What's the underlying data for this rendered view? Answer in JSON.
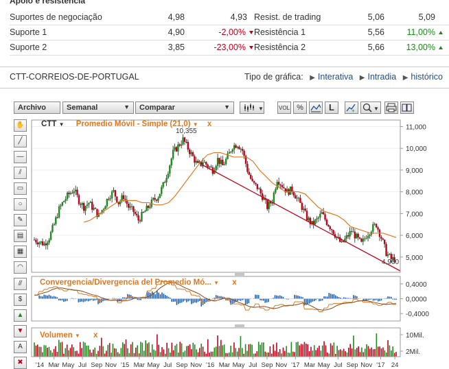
{
  "section_title": "Apoio e resistência",
  "sr_rows": [
    {
      "label": "Suportes de negociação",
      "v1": "4,98",
      "v2": "4,93",
      "rlabel": "Resist. de trading",
      "r1": "5,06",
      "r2": "5,09",
      "v2dir": "",
      "r2dir": ""
    },
    {
      "label": "Suporte 1",
      "v1": "4,90",
      "v2": "-2,00%",
      "rlabel": "Resistência 1",
      "r1": "5,56",
      "r2": "11,00%",
      "v2dir": "down",
      "r2dir": "up"
    },
    {
      "label": "Suporte 2",
      "v1": "3,85",
      "v2": "-23,00%",
      "rlabel": "Resistência 2",
      "r1": "5,66",
      "r2": "13,00%",
      "v2dir": "down",
      "r2dir": "up"
    }
  ],
  "company": "CTT-CORREIOS-DE-PORTUGAL",
  "chart_type_label": "Tipo de gráfica:",
  "chart_type_links": [
    "Interativa",
    "Intradia",
    "histórico"
  ],
  "toolbar": {
    "archive": "Archivo",
    "period": "Semanal",
    "compare": "Comparar",
    "icons": [
      "candles-icon",
      "volume-icon",
      "percent-icon",
      "compare-chart-icon",
      "line-chart-icon",
      "trend-icon",
      "zoom-icon",
      "print-icon",
      "book-icon"
    ],
    "vol_label": "VOL",
    "pct_label": "%",
    "l_label": "L"
  },
  "sidebar_icons": [
    "hand-tool-icon",
    "line-tool-icon",
    "horizontal-line-icon",
    "channel-tool-icon",
    "rectangle-tool-icon",
    "circle-tool-icon",
    "pencil-tool-icon",
    "fibonacci-tool-icon",
    "gann-tool-icon",
    "arc-tool-icon",
    "parallel-lines-icon",
    "dollar-tool-icon",
    "buy-arrow-icon",
    "sell-arrow-icon",
    "text-tool-icon",
    "delete-icon"
  ],
  "main_legend": {
    "symbol": "CTT",
    "indicator": "Promedio Móvil - Simple (21,0)",
    "close": "x"
  },
  "macd_legend": {
    "text": "Convergencia/Divergencia del Promedio Mó...",
    "close": "x"
  },
  "vol_legend": {
    "text": "Volumen",
    "close": "x"
  },
  "annotations": {
    "high": "10,355",
    "last": "4,900"
  },
  "chart_data": [
    {
      "type": "line",
      "title": "CTT",
      "series_name": "Promedio Móvil - Simple (21,0)",
      "y_ticks": [
        "11,000",
        "10,000",
        "9,000",
        "8,000",
        "7,000",
        "6,000",
        "5,000"
      ],
      "ylim": [
        4.3,
        11.3
      ],
      "x_ticks": [
        "'14",
        "Mar",
        "May",
        "Jul",
        "Sep",
        "Nov",
        "'15",
        "Mar",
        "May",
        "Jul",
        "Sep",
        "Nov",
        "'16",
        "Mar",
        "May",
        "Jul",
        "Sep",
        "Nov",
        "'17",
        "Mar",
        "May",
        "Jul",
        "Sep",
        "Nov",
        "'17",
        "24"
      ],
      "close": [
        5.8,
        5.7,
        5.6,
        5.9,
        6.5,
        7.2,
        7.6,
        7.9,
        8.1,
        7.6,
        7.3,
        7.5,
        7.2,
        6.9,
        7.3,
        7.8,
        8.0,
        7.5,
        7.8,
        7.3,
        7.1,
        6.7,
        7.0,
        7.3,
        7.6,
        7.8,
        8.3,
        9.0,
        9.8,
        10.1,
        10.4,
        10.0,
        9.6,
        9.2,
        9.4,
        9.2,
        9.0,
        9.5,
        9.2,
        9.6,
        10.1,
        10.2,
        9.9,
        9.0,
        8.4,
        8.2,
        7.8,
        7.3,
        7.6,
        8.6,
        8.3,
        8.0,
        8.1,
        7.7,
        7.3,
        6.8,
        6.5,
        6.7,
        7.0,
        6.6,
        6.3,
        5.9,
        5.6,
        5.9,
        6.2,
        5.9,
        5.6,
        6.0,
        6.3,
        6.5,
        5.9,
        5.2,
        4.9,
        4.9
      ],
      "sma": [
        6.6,
        6.7,
        6.9,
        7.1,
        7.3,
        7.5,
        7.6,
        7.6,
        7.6,
        7.5,
        7.5,
        7.4,
        7.4,
        7.5,
        7.8,
        8.2,
        8.6,
        9.0,
        9.4,
        9.7,
        9.8,
        9.8,
        9.7,
        9.6,
        9.6,
        9.6,
        9.4,
        9.0,
        8.7,
        8.4,
        8.2,
        8.0,
        8.0,
        8.0,
        7.9,
        7.6,
        7.3,
        7.1,
        7.0,
        6.9,
        6.7,
        6.4,
        6.3,
        6.2,
        6.1,
        6.1,
        6.1,
        6.0,
        5.9
      ],
      "trendline_label": "4,900"
    },
    {
      "type": "bar",
      "title": "Convergencia/Divergencia del Promedio Móvil",
      "y_ticks": [
        "0,4000",
        "0,0000",
        "-0,4000"
      ],
      "ylim": [
        -0.6,
        0.6
      ]
    },
    {
      "type": "bar",
      "title": "Volumen",
      "y_ticks": [
        "10Mil.",
        "2Mil."
      ]
    }
  ]
}
